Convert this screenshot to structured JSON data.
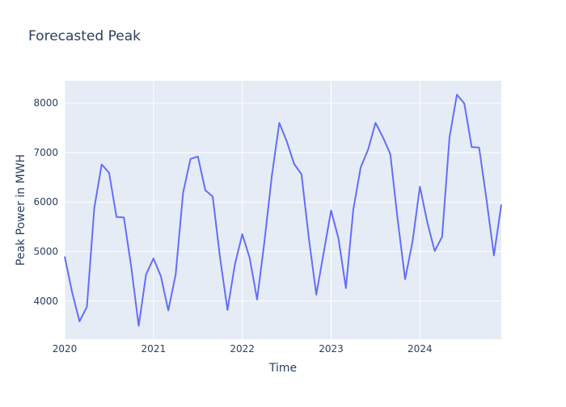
{
  "chart_data": {
    "type": "line",
    "title": "Forecasted Peak",
    "xlabel": "Time",
    "ylabel": "Peak Power in MWH",
    "x_tick_labels": [
      "2020",
      "2021",
      "2022",
      "2023",
      "2024"
    ],
    "y_tick_labels": [
      "4000",
      "5000",
      "6000",
      "7000",
      "8000"
    ],
    "y_ticks": [
      4000,
      5000,
      6000,
      7000,
      8000
    ],
    "xlim": [
      "2020-01",
      "2024-12"
    ],
    "ylim": [
      3230,
      8450
    ],
    "grid": true,
    "line_color": "#636efa",
    "plot_background": "#e5ecf6",
    "x": [
      "2020-01",
      "2020-02",
      "2020-03",
      "2020-04",
      "2020-05",
      "2020-06",
      "2020-07",
      "2020-08",
      "2020-09",
      "2020-10",
      "2020-11",
      "2020-12",
      "2021-01",
      "2021-02",
      "2021-03",
      "2021-04",
      "2021-05",
      "2021-06",
      "2021-07",
      "2021-08",
      "2021-09",
      "2021-10",
      "2021-11",
      "2021-12",
      "2022-01",
      "2022-02",
      "2022-03",
      "2022-04",
      "2022-05",
      "2022-06",
      "2022-07",
      "2022-08",
      "2022-09",
      "2022-10",
      "2022-11",
      "2022-12",
      "2023-01",
      "2023-02",
      "2023-03",
      "2023-04",
      "2023-05",
      "2023-06",
      "2023-07",
      "2023-08",
      "2023-09",
      "2023-10",
      "2023-11",
      "2023-12",
      "2024-01",
      "2024-02",
      "2024-03",
      "2024-04",
      "2024-05",
      "2024-06",
      "2024-07",
      "2024-08",
      "2024-09",
      "2024-10",
      "2024-11",
      "2024-12"
    ],
    "series": [
      {
        "values": [
          4900,
          4180,
          3590,
          3880,
          5880,
          6760,
          6590,
          5700,
          5690,
          4680,
          3500,
          4540,
          4860,
          4500,
          3810,
          4540,
          6190,
          6870,
          6920,
          6240,
          6110,
          4870,
          3820,
          4740,
          5350,
          4870,
          4030,
          5210,
          6540,
          7600,
          7230,
          6770,
          6560,
          5260,
          4130,
          4980,
          5830,
          5260,
          4260,
          5850,
          6700,
          7060,
          7600,
          7310,
          6970,
          5640,
          4440,
          5200,
          6310,
          5590,
          5010,
          5300,
          7310,
          8170,
          7990,
          7110,
          7100,
          6050,
          4920,
          5950
        ]
      }
    ]
  }
}
